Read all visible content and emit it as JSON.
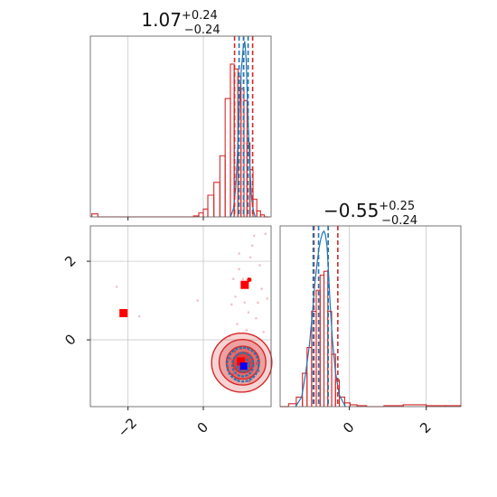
{
  "chart_data": {
    "type": "corner",
    "grid": true,
    "colors": {
      "series_a": "#d62728",
      "series_b": "#1f77b4",
      "marker_red": "#ff0000",
      "marker_blue": "#0000ff"
    },
    "titles": {
      "param1": {
        "value": "1.07",
        "plus": "+0.24",
        "minus": "−0.24"
      },
      "param2": {
        "value": "−0.55",
        "plus": "+0.25",
        "minus": "−0.24"
      }
    },
    "x_range_p1": [
      -3.0,
      1.8
    ],
    "x_range_p2": [
      -1.8,
      2.9
    ],
    "y_range_p2": [
      -1.7,
      2.9
    ],
    "ticks": {
      "p1_x": [
        -2,
        0
      ],
      "p1_x_labels": [
        "−2",
        "0"
      ],
      "p2_y": [
        0,
        2
      ],
      "p2_y_labels": [
        "0",
        "2"
      ],
      "p2_x": [
        0,
        2
      ],
      "p2_x_labels": [
        "0",
        "2"
      ]
    },
    "top_hist": {
      "bin_edges": [
        -2.96,
        -2.8,
        -0.26,
        -0.12,
        0.0,
        0.12,
        0.28,
        0.44,
        0.58,
        0.72,
        0.82,
        0.92,
        1.0,
        1.08,
        1.16,
        1.24,
        1.32,
        1.42,
        1.52,
        1.62,
        1.74
      ],
      "red_counts": [
        3,
        0,
        1,
        4,
        8,
        22,
        35,
        62,
        120,
        155,
        150,
        142,
        130,
        118,
        75,
        48,
        18,
        6,
        2,
        0
      ],
      "blue_x": [
        0.72,
        0.8,
        0.86,
        0.9,
        0.94,
        0.98,
        1.01,
        1.04,
        1.06,
        1.08,
        1.1,
        1.12,
        1.14,
        1.16,
        1.18,
        1.21,
        1.24,
        1.28,
        1.33,
        1.38
      ],
      "blue_y": [
        0,
        8,
        30,
        58,
        95,
        128,
        150,
        162,
        172,
        175,
        178,
        170,
        158,
        132,
        106,
        78,
        46,
        20,
        6,
        0
      ],
      "red_quantiles": [
        0.83,
        1.07,
        1.31
      ],
      "blue_quantiles": [
        0.95,
        1.07,
        1.19
      ]
    },
    "right_hist": {
      "bin_edges": [
        -1.8,
        -1.58,
        -1.38,
        -1.22,
        -1.1,
        -0.98,
        -0.86,
        -0.76,
        -0.66,
        -0.56,
        -0.46,
        -0.36,
        -0.26,
        -0.12,
        0.02,
        0.2,
        0.45,
        0.9,
        1.4,
        2.0,
        2.5,
        2.9
      ],
      "red_counts": [
        0,
        3,
        10,
        35,
        62,
        100,
        122,
        138,
        142,
        100,
        55,
        28,
        10,
        4,
        2,
        1,
        0,
        1,
        2,
        1,
        1
      ],
      "blue_x": [
        -1.4,
        -1.24,
        -1.14,
        -1.04,
        -0.96,
        -0.9,
        -0.84,
        -0.79,
        -0.74,
        -0.7,
        -0.66,
        -0.62,
        -0.58,
        -0.54,
        -0.5,
        -0.44,
        -0.36,
        -0.26,
        -0.1
      ],
      "blue_y": [
        0,
        10,
        34,
        64,
        98,
        128,
        150,
        166,
        176,
        182,
        184,
        180,
        168,
        140,
        108,
        70,
        36,
        12,
        0
      ],
      "red_quantiles": [
        -0.92,
        -0.55,
        -0.3
      ],
      "blue_quantiles": [
        -0.94,
        -0.8,
        -0.55
      ]
    },
    "joint": {
      "red_contours": [
        {
          "cx": 1.02,
          "cy": -0.58,
          "rx": 0.8,
          "ry": 0.75
        },
        {
          "cx": 1.04,
          "cy": -0.57,
          "rx": 0.62,
          "ry": 0.58
        },
        {
          "cx": 1.05,
          "cy": -0.58,
          "rx": 0.44,
          "ry": 0.42
        },
        {
          "cx": 1.06,
          "cy": -0.58,
          "rx": 0.27,
          "ry": 0.26
        }
      ],
      "blue_contours": [
        {
          "cx": 1.05,
          "cy": -0.63,
          "rx": 0.42,
          "ry": 0.43
        },
        {
          "cx": 1.05,
          "cy": -0.63,
          "rx": 0.28,
          "ry": 0.3
        },
        {
          "cx": 1.06,
          "cy": -0.64,
          "rx": 0.16,
          "ry": 0.17
        }
      ],
      "red_markers": [
        {
          "x": -2.12,
          "y": 0.68
        },
        {
          "x": 1.1,
          "y": 1.4
        },
        {
          "x": 1.0,
          "y": -0.55
        }
      ],
      "red_dot": {
        "x": 1.22,
        "y": 1.53
      },
      "blue_marker": {
        "x": 1.07,
        "y": -0.67
      },
      "scatter_red": [
        [
          0.95,
          1.8
        ],
        [
          1.3,
          2.4
        ],
        [
          0.85,
          1.1
        ],
        [
          1.5,
          1.9
        ],
        [
          1.65,
          2.7
        ],
        [
          1.2,
          0.7
        ],
        [
          0.9,
          0.4
        ],
        [
          1.45,
          0.95
        ],
        [
          1.6,
          0.2
        ],
        [
          1.25,
          2.1
        ],
        [
          1.05,
          1.55
        ],
        [
          0.75,
          0.9
        ],
        [
          1.4,
          0.55
        ],
        [
          -0.15,
          1.0
        ],
        [
          -2.3,
          1.35
        ],
        [
          -1.7,
          0.6
        ],
        [
          1.55,
          1.3
        ],
        [
          0.8,
          1.55
        ],
        [
          1.15,
          0.25
        ],
        [
          1.35,
          2.65
        ],
        [
          0.7,
          0.1
        ],
        [
          1.7,
          1.05
        ],
        [
          0.95,
          2.2
        ],
        [
          1.1,
          0.95
        ]
      ],
      "scatter_blue": [
        [
          0.72,
          -0.48
        ],
        [
          1.42,
          -0.6
        ],
        [
          1.0,
          -0.22
        ],
        [
          1.28,
          -0.95
        ],
        [
          0.78,
          -0.88
        ],
        [
          1.4,
          -0.35
        ],
        [
          0.9,
          -1.02
        ],
        [
          1.18,
          -0.2
        ],
        [
          0.65,
          -0.7
        ],
        [
          1.47,
          -0.8
        ],
        [
          0.84,
          -0.3
        ],
        [
          1.22,
          -1.05
        ]
      ]
    }
  }
}
